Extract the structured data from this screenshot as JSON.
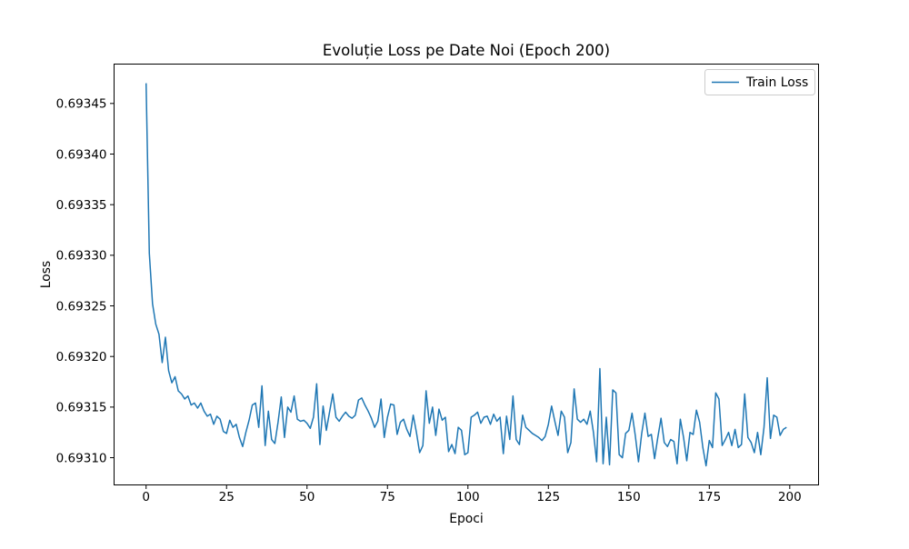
{
  "figure": {
    "background": "#ffffff",
    "frame_color": "#000000",
    "accent_color": "#1f77b4"
  },
  "chart_data": {
    "type": "line",
    "title": "Evoluție Loss pe Date Noi (Epoch 200)",
    "xlabel": "Epoci",
    "ylabel": "Loss",
    "grid": false,
    "legend_position": "upper right",
    "x_ticks": [
      0,
      25,
      50,
      75,
      100,
      125,
      150,
      175,
      200
    ],
    "y_ticks": [
      0.6931,
      0.69315,
      0.6932,
      0.69325,
      0.6933,
      0.69335,
      0.6934,
      0.69345
    ],
    "y_tick_decimals": 5,
    "xlim_data": [
      0,
      199
    ],
    "x_is_index": true,
    "series": [
      {
        "name": "Train Loss",
        "color": "#1f77b4",
        "values": [
          0.69347,
          0.693302,
          0.693252,
          0.693232,
          0.693222,
          0.693194,
          0.693219,
          0.693186,
          0.693174,
          0.69318,
          0.693166,
          0.693163,
          0.693158,
          0.693161,
          0.693152,
          0.693154,
          0.693149,
          0.693154,
          0.693146,
          0.693141,
          0.693143,
          0.693133,
          0.693141,
          0.693138,
          0.693126,
          0.693124,
          0.693137,
          0.69313,
          0.693133,
          0.69312,
          0.693111,
          0.693125,
          0.693137,
          0.693152,
          0.693154,
          0.69313,
          0.693171,
          0.693112,
          0.693146,
          0.693118,
          0.693114,
          0.693135,
          0.69316,
          0.69312,
          0.69315,
          0.693145,
          0.693161,
          0.693138,
          0.693136,
          0.693137,
          0.693134,
          0.693129,
          0.69314,
          0.693173,
          0.693113,
          0.693151,
          0.693127,
          0.693145,
          0.693163,
          0.69314,
          0.693136,
          0.693141,
          0.693145,
          0.693141,
          0.693139,
          0.693142,
          0.693157,
          0.693159,
          0.693152,
          0.693146,
          0.693139,
          0.69313,
          0.693136,
          0.693158,
          0.69312,
          0.69314,
          0.693153,
          0.693152,
          0.693123,
          0.693135,
          0.693138,
          0.693128,
          0.693121,
          0.693142,
          0.693125,
          0.693105,
          0.693112,
          0.693166,
          0.693134,
          0.69315,
          0.693122,
          0.693148,
          0.693137,
          0.69314,
          0.693106,
          0.693113,
          0.693104,
          0.69313,
          0.693127,
          0.693103,
          0.693105,
          0.69314,
          0.693142,
          0.693145,
          0.693134,
          0.69314,
          0.693141,
          0.693133,
          0.693143,
          0.693136,
          0.69314,
          0.693104,
          0.693141,
          0.693118,
          0.693161,
          0.693118,
          0.693113,
          0.693142,
          0.69313,
          0.693127,
          0.693124,
          0.693122,
          0.69312,
          0.693117,
          0.693121,
          0.693133,
          0.693151,
          0.693136,
          0.693122,
          0.693146,
          0.69314,
          0.693105,
          0.693115,
          0.693168,
          0.693138,
          0.693135,
          0.693138,
          0.693133,
          0.693146,
          0.693125,
          0.693096,
          0.693188,
          0.693094,
          0.69314,
          0.693093,
          0.693167,
          0.693164,
          0.693103,
          0.6931,
          0.693124,
          0.693127,
          0.693144,
          0.693122,
          0.693096,
          0.693124,
          0.693144,
          0.693121,
          0.693123,
          0.693099,
          0.69312,
          0.693139,
          0.693115,
          0.693111,
          0.693118,
          0.693116,
          0.693094,
          0.693138,
          0.69312,
          0.693097,
          0.693125,
          0.693123,
          0.693147,
          0.693135,
          0.69311,
          0.693092,
          0.693117,
          0.69311,
          0.693164,
          0.693158,
          0.693112,
          0.693118,
          0.693125,
          0.693112,
          0.693128,
          0.69311,
          0.693113,
          0.693163,
          0.69312,
          0.693115,
          0.693105,
          0.693125,
          0.693103,
          0.69313,
          0.693179,
          0.693119,
          0.693142,
          0.69314,
          0.693122,
          0.693128,
          0.69313
        ]
      }
    ]
  }
}
